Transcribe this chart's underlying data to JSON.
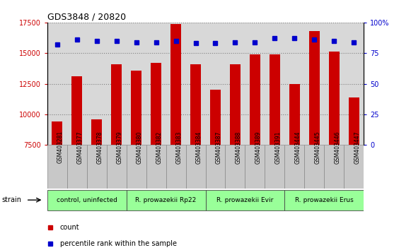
{
  "title": "GDS3848 / 20820",
  "samples": [
    "GSM403281",
    "GSM403377",
    "GSM403378",
    "GSM403379",
    "GSM403380",
    "GSM403382",
    "GSM403383",
    "GSM403384",
    "GSM403387",
    "GSM403388",
    "GSM403389",
    "GSM403391",
    "GSM403444",
    "GSM403445",
    "GSM403446",
    "GSM403447"
  ],
  "counts": [
    9400,
    13100,
    9600,
    14100,
    13600,
    14200,
    17400,
    14100,
    12000,
    14100,
    14900,
    14900,
    12500,
    16800,
    15100,
    11400
  ],
  "percentiles": [
    82,
    86,
    85,
    85,
    84,
    84,
    85,
    83,
    83,
    84,
    84,
    87,
    87,
    86,
    85,
    84
  ],
  "ylim_left": [
    7500,
    17500
  ],
  "ylim_right": [
    0,
    100
  ],
  "yticks_left": [
    7500,
    10000,
    12500,
    15000,
    17500
  ],
  "yticks_right": [
    0,
    25,
    50,
    75,
    100
  ],
  "yticklabels_right": [
    "0",
    "25",
    "50",
    "75",
    "100%"
  ],
  "bar_color": "#cc0000",
  "dot_color": "#0000cc",
  "groups": [
    {
      "label": "control, uninfected",
      "start": 0,
      "end": 3
    },
    {
      "label": "R. prowazekii Rp22",
      "start": 4,
      "end": 7
    },
    {
      "label": "R. prowazekii Evir",
      "start": 8,
      "end": 11
    },
    {
      "label": "R. prowazekii Erus",
      "start": 12,
      "end": 15
    }
  ],
  "group_color": "#99ff99",
  "legend_count_color": "#cc0000",
  "legend_pct_color": "#0000cc",
  "strain_label": "strain",
  "background_color": "#ffffff",
  "plot_bg_color": "#d8d8d8",
  "label_bg_color": "#c8c8c8",
  "bar_bottom": 7500
}
